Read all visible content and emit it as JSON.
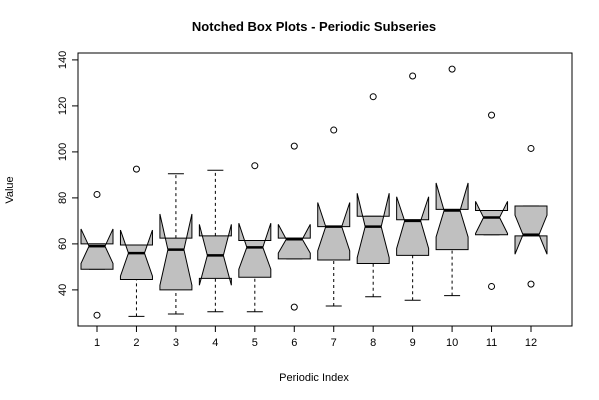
{
  "chart_data": {
    "type": "boxplot",
    "title": "Notched Box Plots - Periodic Subseries",
    "x_label": "Periodic Index",
    "y_label": "Value",
    "categories": [
      "1",
      "2",
      "3",
      "4",
      "5",
      "6",
      "7",
      "8",
      "9",
      "10",
      "11",
      "12"
    ],
    "ylim": [
      24.3,
      143
    ],
    "yticks": [
      40,
      60,
      80,
      100,
      120,
      140
    ],
    "color": "#c0c0c0",
    "boxes": [
      {
        "whisker_low": 49,
        "q1": 49,
        "median": 59,
        "q3": 60,
        "whisker_high": 60,
        "notch_low": 51.5,
        "notch_high": 66.5,
        "outliers": [
          81.5,
          29
        ]
      },
      {
        "whisker_low": 28.5,
        "q1": 44.5,
        "median": 56,
        "q3": 59.5,
        "whisker_high": 59.5,
        "notch_low": 46,
        "notch_high": 66,
        "outliers": [
          92.5
        ]
      },
      {
        "whisker_low": 29.5,
        "q1": 40,
        "median": 57.5,
        "q3": 62.5,
        "whisker_high": 90.5,
        "notch_low": 42,
        "notch_high": 73,
        "outliers": []
      },
      {
        "whisker_low": 30.5,
        "q1": 45,
        "median": 55,
        "q3": 63.5,
        "whisker_high": 92,
        "notch_low": 42,
        "notch_high": 68.5,
        "outliers": []
      },
      {
        "whisker_low": 30.5,
        "q1": 45.5,
        "median": 58.5,
        "q3": 61.5,
        "whisker_high": 61.5,
        "notch_low": 49,
        "notch_high": 69,
        "outliers": [
          94
        ]
      },
      {
        "whisker_low": 53.5,
        "q1": 53.5,
        "median": 62,
        "q3": 62.5,
        "whisker_high": 62.5,
        "notch_low": 56,
        "notch_high": 68.5,
        "outliers": [
          102.5,
          32.5
        ]
      },
      {
        "whisker_low": 33,
        "q1": 53,
        "median": 67.5,
        "q3": 67.5,
        "whisker_high": 67.5,
        "notch_low": 57,
        "notch_high": 78,
        "outliers": [
          109.5
        ]
      },
      {
        "whisker_low": 37,
        "q1": 51.5,
        "median": 67.5,
        "q3": 72,
        "whisker_high": 72,
        "notch_low": 54,
        "notch_high": 82,
        "outliers": [
          124
        ]
      },
      {
        "whisker_low": 35.5,
        "q1": 55,
        "median": 70,
        "q3": 70.5,
        "whisker_high": 70.5,
        "notch_low": 58,
        "notch_high": 80.5,
        "outliers": [
          133
        ]
      },
      {
        "whisker_low": 37.5,
        "q1": 57.5,
        "median": 74.5,
        "q3": 75,
        "whisker_high": 75,
        "notch_low": 63,
        "notch_high": 86.5,
        "outliers": [
          136
        ]
      },
      {
        "whisker_low": 64,
        "q1": 64,
        "median": 71.5,
        "q3": 74.5,
        "whisker_high": 74.5,
        "notch_low": 64.5,
        "notch_high": 78.5,
        "outliers": [
          116,
          41.5
        ]
      },
      {
        "whisker_low": 63.5,
        "q1": 63.5,
        "median": 64,
        "q3": 76.5,
        "whisker_high": 76.5,
        "notch_low": 55.5,
        "notch_high": 72.5,
        "outliers": [
          101.5,
          42.5
        ]
      }
    ]
  }
}
